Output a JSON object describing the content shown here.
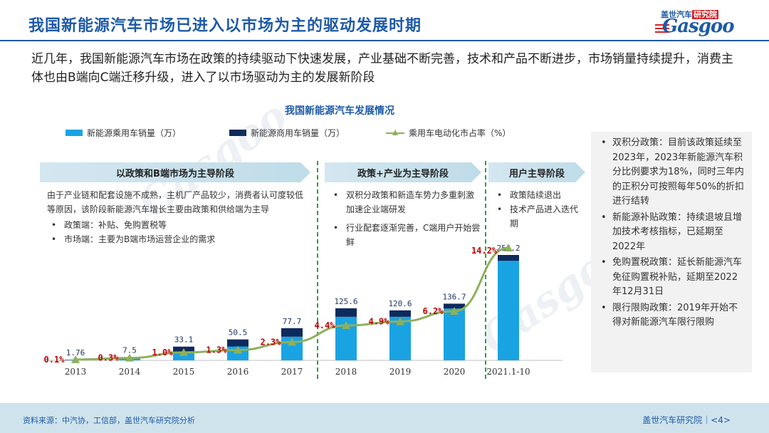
{
  "title": "我国新能源汽车市场已进入以市场为主的驱动发展时期",
  "logo": {
    "sub": "盖世汽车",
    "sub_red": "研究院",
    "main": "Gasgoo"
  },
  "intro": "近几年，我国新能源汽车市场在政策的持续驱动下快速发展，产业基础不断完善，技术和产品不断进步，市场销量持续提升，消费主体也由B端向C端迁移升级，进入了以市场驱动为主的发展新阶段",
  "phases": [
    {
      "label": "以政策和B端市场为主导阶段"
    },
    {
      "label": "政策+产业为主导阶段"
    },
    {
      "label": "用户主导阶段"
    }
  ],
  "phase1_desc": {
    "para": "由于产业链和配套设施不成熟，主机厂产品较少，消费者认可度较低等原因，该阶段新能源汽车增长主要由政策和供给端为主导",
    "bullets": [
      "政策端：补贴、免购置税等",
      "市场端：主要为B端市场运营企业的需求"
    ]
  },
  "phase2_desc": {
    "bullets": [
      "双积分政策和新造车势力多重刺激加速企业端研发",
      "行业配套逐渐完善，C端用户开始尝鲜"
    ]
  },
  "phase3_desc": {
    "bullets": [
      "政策陆续退出",
      "技术产品进入迭代期"
    ]
  },
  "side_notes": [
    "双积分政策：目前该政策延续至2023年，2023年新能源汽车积分比例要求为18%，同时三年内的正积分可按照每年50%的折扣进行结转",
    "新能源补贴政策：持续退坡且增加技术考核指标，已延期至2022年",
    "免购置税政策：延长新能源汽车免征购置税补贴，延期至2022年12月31日",
    "限行限购政策：2019年开始不得对新能源汽车限行限购"
  ],
  "footer": {
    "source": "资料来源：中汽协，工信部，盖世汽车研究院分析",
    "institute": "盖世汽车研究院｜<4>"
  },
  "colors": {
    "passenger": "#1aa3e2",
    "commercial": "#0e2a5c",
    "share_line": "#8db15b",
    "share_label": "#c00000",
    "title": "#1e5aa8"
  },
  "chart_data": {
    "type": "bar",
    "title": "我国新能源汽车发展情况",
    "categories": [
      "2013",
      "2014",
      "2015",
      "2016",
      "2017",
      "2018",
      "2019",
      "2020",
      "2021.1-10"
    ],
    "series": [
      {
        "name": "新能源乘用车销量（万）",
        "values": [
          1.2,
          6.0,
          21.0,
          33.5,
          57.0,
          105.0,
          105.0,
          125.0,
          240.0
        ]
      },
      {
        "name": "新能源商用车销量（万）",
        "values": [
          0.56,
          1.5,
          12.1,
          17.0,
          20.7,
          20.6,
          15.6,
          11.7,
          14.2
        ]
      },
      {
        "name": "乘用车电动化市占率（%）",
        "values": [
          0.1,
          0.3,
          1.0,
          1.3,
          2.3,
          4.4,
          4.9,
          6.2,
          14.2
        ]
      }
    ],
    "total_labels": [
      "1.76",
      "7.5",
      "33.1",
      "50.5",
      "77.7",
      "125.6",
      "120.6",
      "136.7",
      "254.2"
    ],
    "share_labels": [
      "0.1%",
      "0.3%",
      "1.0%",
      "1.3%",
      "2.3%",
      "4.4%",
      "4.9%",
      "6.2%",
      "14.2%"
    ],
    "legend_position": "top"
  }
}
